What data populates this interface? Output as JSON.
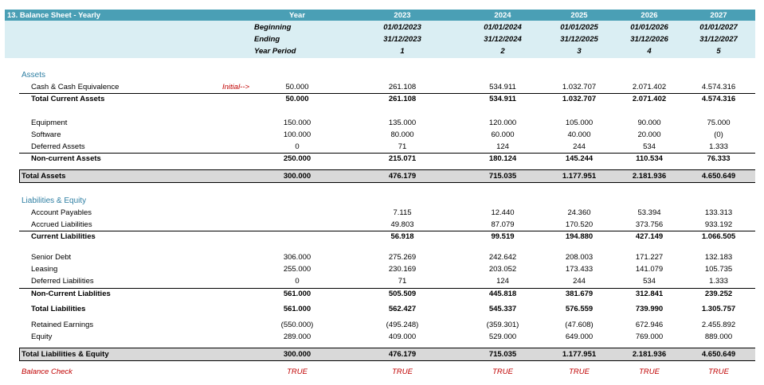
{
  "title": "13. Balance Sheet - Yearly",
  "header": {
    "year_label": "Year",
    "beginning_label": "Beginning",
    "ending_label": "Ending",
    "period_label": "Year Period",
    "years": [
      "2023",
      "2024",
      "2025",
      "2026",
      "2027"
    ],
    "beginning": [
      "01/01/2023",
      "01/01/2024",
      "01/01/2025",
      "01/01/2026",
      "01/01/2027"
    ],
    "ending": [
      "31/12/2023",
      "31/12/2024",
      "31/12/2025",
      "31/12/2026",
      "31/12/2027"
    ],
    "periods": [
      "1",
      "2",
      "3",
      "4",
      "5"
    ]
  },
  "assets_label": "Assets",
  "liab_label": "Liabilities & Equity",
  "initial_note": "Initial-->",
  "rows": {
    "cash": {
      "label": "Cash & Cash Equivalence",
      "initial": "50.000",
      "values": [
        "261.108",
        "534.911",
        "1.032.707",
        "2.071.402",
        "4.574.316"
      ]
    },
    "tca": {
      "label": "Total Current Assets",
      "initial": "50.000",
      "values": [
        "261.108",
        "534.911",
        "1.032.707",
        "2.071.402",
        "4.574.316"
      ]
    },
    "equipment": {
      "label": "Equipment",
      "initial": "150.000",
      "values": [
        "135.000",
        "120.000",
        "105.000",
        "90.000",
        "75.000"
      ]
    },
    "software": {
      "label": "Software",
      "initial": "100.000",
      "values": [
        "80.000",
        "60.000",
        "40.000",
        "20.000",
        "(0)"
      ]
    },
    "deferred_assets": {
      "label": "Deferred Assets",
      "initial": "0",
      "values": [
        "71",
        "124",
        "244",
        "534",
        "1.333"
      ]
    },
    "nca": {
      "label": "Non-current Assets",
      "initial": "250.000",
      "values": [
        "215.071",
        "180.124",
        "145.244",
        "110.534",
        "76.333"
      ]
    },
    "total_assets": {
      "label": "Total Assets",
      "initial": "300.000",
      "values": [
        "476.179",
        "715.035",
        "1.177.951",
        "2.181.936",
        "4.650.649"
      ]
    },
    "ap": {
      "label": "Account Payables",
      "initial": "",
      "values": [
        "7.115",
        "12.440",
        "24.360",
        "53.394",
        "133.313"
      ]
    },
    "accrued": {
      "label": "Accrued Liabilities",
      "initial": "",
      "values": [
        "49.803",
        "87.079",
        "170.520",
        "373.756",
        "933.192"
      ]
    },
    "cl": {
      "label": "Current Liabilities",
      "initial": "",
      "values": [
        "56.918",
        "99.519",
        "194.880",
        "427.149",
        "1.066.505"
      ]
    },
    "senior_debt": {
      "label": "Senior Debt",
      "initial": "306.000",
      "values": [
        "275.269",
        "242.642",
        "208.003",
        "171.227",
        "132.183"
      ]
    },
    "leasing": {
      "label": "Leasing",
      "initial": "255.000",
      "values": [
        "230.169",
        "203.052",
        "173.433",
        "141.079",
        "105.735"
      ]
    },
    "deferred_liab": {
      "label": "Deferred Liabilities",
      "initial": "0",
      "values": [
        "71",
        "124",
        "244",
        "534",
        "1.333"
      ]
    },
    "ncl": {
      "label": "Non-Current Liablities",
      "initial": "561.000",
      "values": [
        "505.509",
        "445.818",
        "381.679",
        "312.841",
        "239.252"
      ]
    },
    "total_liab": {
      "label": "Total Liabilities",
      "initial": "561.000",
      "values": [
        "562.427",
        "545.337",
        "576.559",
        "739.990",
        "1.305.757"
      ]
    },
    "retained": {
      "label": "Retained Earnings",
      "initial": "(550.000)",
      "values": [
        "(495.248)",
        "(359.301)",
        "(47.608)",
        "672.946",
        "2.455.892"
      ]
    },
    "equity": {
      "label": "Equity",
      "initial": "289.000",
      "values": [
        "409.000",
        "529.000",
        "649.000",
        "769.000",
        "889.000"
      ]
    },
    "total_le": {
      "label": "Total Liabilities & Equity",
      "initial": "300.000",
      "values": [
        "476.179",
        "715.035",
        "1.177.951",
        "2.181.936",
        "4.650.649"
      ]
    },
    "check": {
      "label": "Balance Check",
      "initial": "TRUE",
      "values": [
        "TRUE",
        "TRUE",
        "TRUE",
        "TRUE",
        "TRUE"
      ]
    }
  }
}
